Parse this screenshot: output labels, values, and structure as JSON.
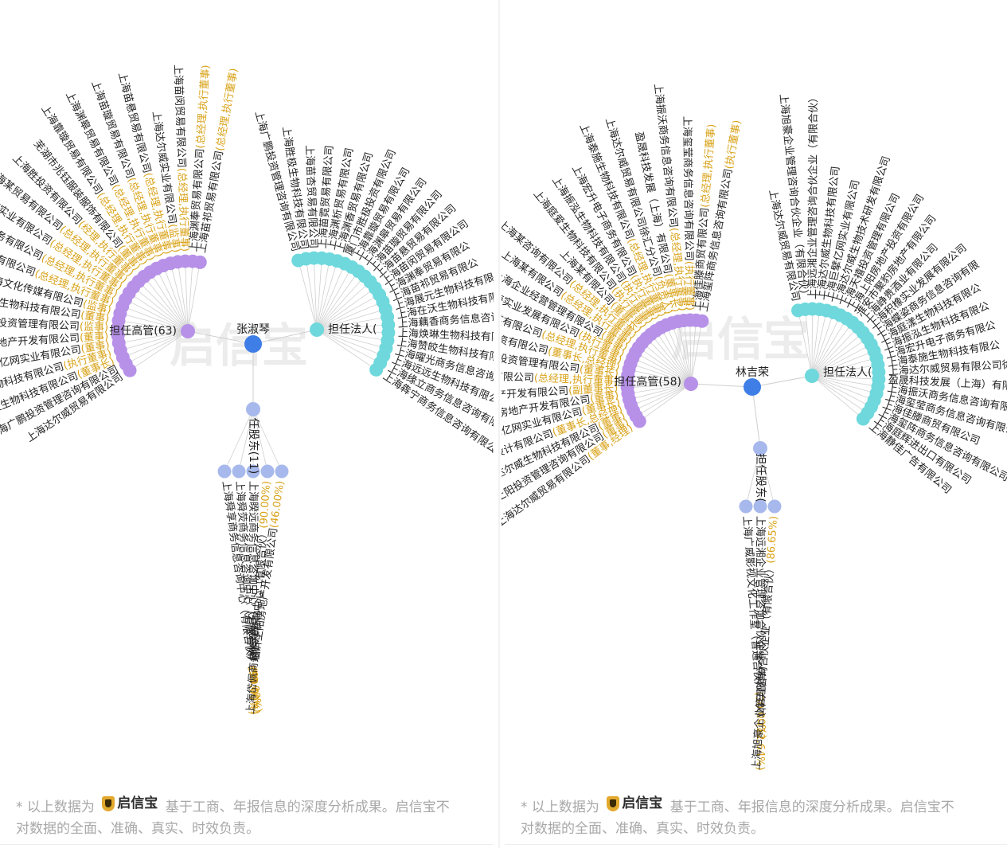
{
  "palette": {
    "line": "#cfcfcf",
    "person": "#3e7ee6",
    "role_exec": "#b791e8",
    "role_legal": "#6ed8dc",
    "role_holder": "#a7b9ec",
    "text": "#222222",
    "accent": "#d9a31a",
    "watermark": "#ececec"
  },
  "panels": [
    {
      "person": "张淑琴",
      "watermark": "启信宝",
      "groups": [
        {
          "label": "担任高管(63)",
          "kind": "exec",
          "items": [
            {
              "name": "上海苗祁贸易有限公司",
              "note": "(总经理,执行董事)"
            },
            {
              "name": "上海渊奉贸易有限公司",
              "note": "(总经理,执行董事)"
            },
            {
              "name": "上海苗闵贸易有限公司",
              "note": "(总经理,执行董事)"
            },
            {
              "name": "上海达尔威实业有限公司",
              "note": "(监事)"
            },
            {
              "name": "上海苗悬贸易有限公司",
              "note": "(总经理,执行董事)"
            },
            {
              "name": "上海苗璇贸易有限公司",
              "note": "(总经理,执行董事)"
            },
            {
              "name": "上海渊皋贸易有限公司",
              "note": "(总经理,执行董事)"
            },
            {
              "name": "上海靠璇贸易有限公司",
              "note": "(总经理,执行董事)"
            },
            {
              "name": "芜湖市兆钰服装服饰有限公司",
              "note": "(董事)"
            },
            {
              "name": "上海胜投资有限公司",
              "note": "(经理,执行董事)"
            },
            {
              "name": "上海某贸易有限公司",
              "note": "(总经理,执行董事)"
            },
            {
              "name": "上海某实业有限公司",
              "note": "(总经理,执行董事)"
            },
            {
              "name": "上海某商务有限公司",
              "note": "(总经理,执行董事)"
            },
            {
              "name": "上海某科技有限公司",
              "note": "(总经理,执行董事)"
            },
            {
              "name": "上海文化传媒有限公司",
              "note": "(监事)"
            },
            {
              "name": "上海达尔威生物科技有限公司",
              "note": "(董事)"
            },
            {
              "name": "上海天禧投资管理有限公司",
              "note": "(监事)"
            },
            {
              "name": "上海上阳房地产开发有限公司",
              "note": "(董事)"
            },
            {
              "name": "上海巨擘亿网实业有限公司",
              "note": "(董事)"
            },
            {
              "name": "上海达尔威生物科技有限公司",
              "note": "(执行董事)"
            },
            {
              "name": "上海胜极生物科技有限公司",
              "note": "(董事长)"
            },
            {
              "name": "上海广鹏投资管理咨询有限公司",
              "note": ""
            },
            {
              "name": "上海达尔威贸易有限公司",
              "note": ""
            }
          ]
        },
        {
          "label": "担任法人(",
          "kind": "legal",
          "items": [
            {
              "name": "上海广鹏投资管理咨询有限公司",
              "note": ""
            },
            {
              "name": "上海胜极生物科技有限公司",
              "note": ""
            },
            {
              "name": "上海苗杏贸易有限公司",
              "note": ""
            },
            {
              "name": "上海苗霓贸易有限公司",
              "note": ""
            },
            {
              "name": "上海渊析贸易有限公司",
              "note": ""
            },
            {
              "name": "上海渊香贸易有限公司",
              "note": ""
            },
            {
              "name": "厦门市胜极投资有限公司",
              "note": ""
            },
            {
              "name": "上海靠璇贸易有限公司",
              "note": ""
            },
            {
              "name": "上海渊皋贸易有限公司",
              "note": ""
            },
            {
              "name": "上海苗璇贸易有限公司",
              "note": ""
            },
            {
              "name": "上海苗悬贸易有限公司",
              "note": ""
            },
            {
              "name": "上海苗闵贸易有限公司",
              "note": ""
            },
            {
              "name": "上海渊奉贸易有限公",
              "note": ""
            },
            {
              "name": "上海苗祁贸易有限公",
              "note": ""
            },
            {
              "name": "上海展元生物科技有限",
              "note": ""
            },
            {
              "name": "上海在沃生物科技有限",
              "note": ""
            },
            {
              "name": "上海藕香商务信息咨询有",
              "note": ""
            },
            {
              "name": "上海焕琳生物科技有限公",
              "note": ""
            },
            {
              "name": "上海赞皎生物科技有限公司",
              "note": ""
            },
            {
              "name": "上海曜光商务信息咨询有限公司",
              "note": ""
            },
            {
              "name": "上海远远生物科技有限公司",
              "note": ""
            },
            {
              "name": "上海缘立商务信息咨询有限公司",
              "note": ""
            },
            {
              "name": "上海犇宁商务信息咨询有限公司",
              "note": ""
            }
          ]
        },
        {
          "label": "任股东(11)",
          "kind": "holder",
          "items": [
            {
              "name": "上海舜享商务信息咨询中心（有限合伙）",
              "note": "(99.00%)"
            },
            {
              "name": "上海舜荧商务信息咨询中心（有限合伙）",
              "note": "(99.00%)"
            },
            {
              "name": "上海睽远商务信息咨询中心（有限合伙）",
              "note": "(90.00%)"
            },
            {
              "name": "上海岱佩商务信息咨询中心（有限合伙）",
              "note": "(90.00%)"
            },
            {
              "name": "临沂上阳房地产开发有限公司",
              "note": "(46.00%)"
            }
          ]
        }
      ],
      "footer": {
        "prefix": "* 以上数据为",
        "brand": "启信宝",
        "suffix": "基于工商、年报信息的深度分析成果。启信宝不对数据的全面、准确、真实、时效负责。"
      }
    },
    {
      "person": "林吉荣",
      "watermark": "启信宝",
      "groups": [
        {
          "label": "担任高管(58)",
          "kind": "exec",
          "items": [
            {
              "name": "上海玺阵商务信息咨询有限公司",
              "note": "(执行董事)"
            },
            {
              "name": "上海佳滕商贸有限公司",
              "note": "(总经理,执行董事)"
            },
            {
              "name": "上海玺莹商务信息咨询有限公司",
              "note": "(执行董事)"
            },
            {
              "name": "上海振沃商务信息咨询有限公司",
              "note": "(总经理,执行董事)"
            },
            {
              "name": "盈晟科技发展（上海）有限公司",
              "note": "(董事长)"
            },
            {
              "name": "上海达尔威贸易有限公司徐汇分公司",
              "note": "(负责人)"
            },
            {
              "name": "上海泰施生物科技有限公司",
              "note": "(总经理,执行董事)"
            },
            {
              "name": "上海宏升电子商务有限公司",
              "note": "(执行董事)"
            },
            {
              "name": "上海振泓生物科技有限公司",
              "note": "(执行董事)"
            },
            {
              "name": "上海庭爱生物科技有限公司",
              "note": "(执行董事)"
            },
            {
              "name": "上海某有限公司",
              "note": "(董事长)"
            },
            {
              "name": "上海某咨询有限公司",
              "note": "(总经理,执行董事)"
            },
            {
              "name": "上海某有限公司",
              "note": "(总经理,执行董事)"
            },
            {
              "name": "上海企业经营管理有限公司",
              "note": "(董事)"
            },
            {
              "name": "上海实业发展有限公司",
              "note": "(执行董事)"
            },
            {
              "name": "上海某有限公司",
              "note": "(总经理,执行董事)"
            },
            {
              "name": "上海投资有限公司",
              "note": "(董事长,总经理)"
            },
            {
              "name": "上海天禧投资管理有限公司",
              "note": "(董事长)"
            },
            {
              "name": "上海术研发有限公司",
              "note": "(总经理,执行董事)"
            },
            {
              "name": "上海源裕龙房地产开发有限公司",
              "note": "(副董事长)"
            },
            {
              "name": "上海新吉阳房地产开发有限公司",
              "note": "(董事)"
            },
            {
              "name": "上海巨擘亿网实业有限公司",
              "note": "(董事长)"
            },
            {
              "name": "上海瑞建建筑设计有限公司",
              "note": "(董事长,总经理)"
            },
            {
              "name": "上海达尔威生物科技有限公司",
              "note": "(董事)"
            },
            {
              "name": "上海上阳投资管理咨询有限公司",
              "note": "(董事)"
            },
            {
              "name": "上海达尔威贸易有限公司",
              "note": "(董事,经理)"
            }
          ]
        },
        {
          "label": "担任法人(",
          "kind": "legal",
          "items": [
            {
              "name": "上海达尔威贸易有限公司",
              "note": ""
            },
            {
              "name": "上海旭豪企业管理咨询合伙企业（有限合伙）",
              "note": ""
            },
            {
              "name": "上海远湘企业管理咨询合伙企业（有限合伙）",
              "note": ""
            },
            {
              "name": "上海达尔威生物科技有限公司",
              "note": ""
            },
            {
              "name": "上海巨擘亿网实业有限公司",
              "note": ""
            },
            {
              "name": "上海达尔威生物技术研发有限公司",
              "note": ""
            },
            {
              "name": "上海天禧投资管理有限公司",
              "note": ""
            },
            {
              "name": "上海上阳房地产投资有限公司",
              "note": ""
            },
            {
              "name": "淮安市聚豹房地产有限公司",
              "note": ""
            },
            {
              "name": "上海峥贵酒业有限公司",
              "note": ""
            },
            {
              "name": "上海积橡实业发展有限公司",
              "note": ""
            },
            {
              "name": "上海蝶姿商务信息咨询有限",
              "note": ""
            },
            {
              "name": "上海庭漾生物科技有限公",
              "note": ""
            },
            {
              "name": "上海振泓生物科技有限公",
              "note": ""
            },
            {
              "name": "上海宏升电子商务有限公",
              "note": ""
            },
            {
              "name": "上海泰施生物科技有限公",
              "note": ""
            },
            {
              "name": "上海达尔威贸易有限公司徐",
              "note": ""
            },
            {
              "name": "盈晟科技发展（上海）有限公",
              "note": ""
            },
            {
              "name": "上海振沃商务信息咨询有限公",
              "note": ""
            },
            {
              "name": "上海玺莹商务信息咨询有限公司",
              "note": ""
            },
            {
              "name": "上海佳滕商贸有限公司",
              "note": ""
            },
            {
              "name": "上海玺阵商务信息咨询有限公司",
              "note": ""
            },
            {
              "name": "上海庭辉进出口有限公司",
              "note": ""
            },
            {
              "name": "上海静佳广告有限公司",
              "note": ""
            }
          ]
        },
        {
          "label": "担任股东(",
          "kind": "holder",
          "items": [
            {
              "name": "上海广威影视文化工作室（普通合伙）",
              "note": "(30.00%)"
            },
            {
              "name": "上海远湘企业管理咨询合伙企业（有限合伙）",
              "note": "(12.64%)"
            },
            {
              "name": "上海旭豪企业管理咨询合伙企业（有限合伙）",
              "note": "(86.65%)"
            }
          ]
        }
      ],
      "footer": {
        "prefix": "* 以上数据为",
        "brand": "启信宝",
        "suffix": "基于工商、年报信息的深度分析成果。启信宝不对数据的全面、准确、真实、时效负责。"
      }
    }
  ]
}
